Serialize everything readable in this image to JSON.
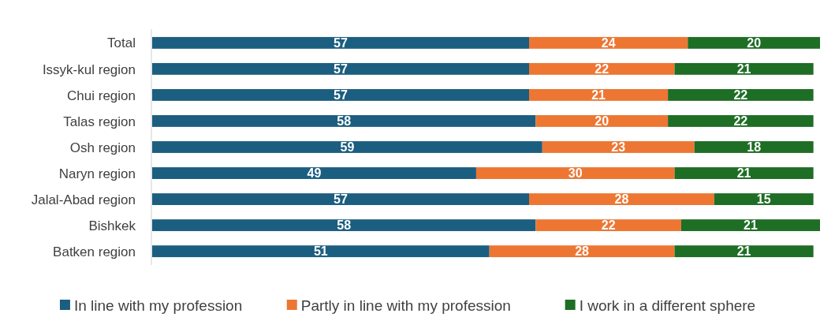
{
  "chart_data": {
    "type": "bar",
    "orientation": "horizontal",
    "stacked": true,
    "data_labels": true,
    "legend": "bottom",
    "categories": [
      "Total",
      "Issyk-kul region",
      "Chui region",
      "Talas region",
      "Osh region",
      "Naryn region",
      "Jalal-Abad region",
      "Bishkek",
      "Batken region"
    ],
    "series": [
      {
        "name": "In line with my profession",
        "color": "#1b5e80",
        "values": [
          57,
          57,
          57,
          58,
          59,
          49,
          57,
          58,
          51
        ]
      },
      {
        "name": "Partly in line with my profession",
        "color": "#ed7633",
        "values": [
          24,
          22,
          21,
          20,
          23,
          30,
          28,
          22,
          28
        ]
      },
      {
        "name": "I work in a different sphere",
        "color": "#1e6e25",
        "values": [
          20,
          21,
          22,
          22,
          18,
          21,
          15,
          21,
          21
        ]
      }
    ]
  }
}
